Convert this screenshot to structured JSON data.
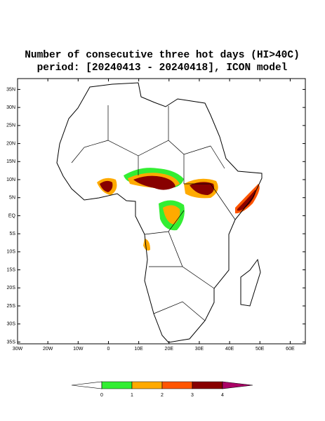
{
  "title": [
    "Number of consecutive three hot days (HI>40C)",
    "period: [20240413 - 20240418], ICON model"
  ],
  "map": {
    "lonlim": [
      -30,
      65
    ],
    "latlim": [
      -35.5,
      38
    ],
    "lat_ticks": [
      {
        "value": 35,
        "label": "35N"
      },
      {
        "value": 30,
        "label": "30N"
      },
      {
        "value": 25,
        "label": "25N"
      },
      {
        "value": 20,
        "label": "20N"
      },
      {
        "value": 15,
        "label": "15N"
      },
      {
        "value": 10,
        "label": "10N"
      },
      {
        "value": 5,
        "label": "5N"
      },
      {
        "value": 0,
        "label": "EQ"
      },
      {
        "value": -5,
        "label": "5S"
      },
      {
        "value": -10,
        "label": "10S"
      },
      {
        "value": -15,
        "label": "15S"
      },
      {
        "value": -20,
        "label": "20S"
      },
      {
        "value": -25,
        "label": "25S"
      },
      {
        "value": -30,
        "label": "30S"
      },
      {
        "value": -35,
        "label": "35S"
      }
    ],
    "lon_ticks": [
      {
        "value": -30,
        "label": "30W"
      },
      {
        "value": -20,
        "label": "20W"
      },
      {
        "value": -10,
        "label": "10W"
      },
      0,
      {
        "value": 10,
        "label": "10E"
      },
      {
        "value": 20,
        "label": "20E"
      },
      {
        "value": 30,
        "label": "30E"
      },
      {
        "value": 40,
        "label": "40E"
      },
      {
        "value": 50,
        "label": "50E"
      },
      {
        "value": 60,
        "label": "60E"
      }
    ]
  },
  "colorbar": {
    "ticks": [
      0,
      1,
      2,
      3,
      4
    ],
    "colors": [
      "#ffffff",
      "#33ee33",
      "#ffaa00",
      "#ff5500",
      "#880000",
      "#aa0066"
    ]
  }
}
